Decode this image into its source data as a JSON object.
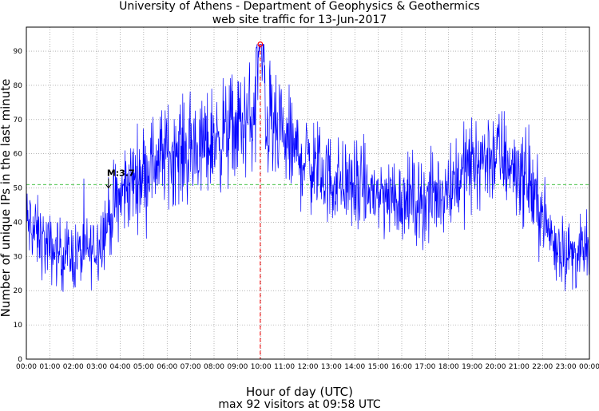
{
  "chart_data": {
    "type": "line",
    "title": "University of Athens - Department of Geophysics & Geothermics",
    "subtitle": "web site traffic for 13-Jun-2017",
    "xlabel": "Hour of day (UTC)",
    "ylabel": "Number of unique IPs in the last minute",
    "caption": "max 92 visitors at 09:58 UTC",
    "xlim": [
      0,
      24
    ],
    "ylim": [
      0,
      97
    ],
    "grid": true,
    "x_tick_labels": [
      "00:00",
      "01:00",
      "02:00",
      "03:00",
      "04:00",
      "05:00",
      "06:00",
      "07:00",
      "08:00",
      "09:00",
      "10:00",
      "11:00",
      "12:00",
      "13:00",
      "14:00",
      "15:00",
      "16:00",
      "17:00",
      "18:00",
      "19:00",
      "20:00",
      "21:00",
      "22:00",
      "23:00",
      "00:00"
    ],
    "y_ticks": [
      0,
      10,
      20,
      30,
      40,
      50,
      60,
      70,
      80,
      90
    ],
    "series": [
      {
        "color": "#0000ff",
        "x": [
          0,
          0.5,
          1,
          1.5,
          2,
          2.5,
          3,
          3.5,
          4,
          4.5,
          5,
          5.5,
          6,
          6.5,
          7,
          7.5,
          8,
          8.5,
          9,
          9.5,
          9.97,
          10.5,
          11,
          11.5,
          12,
          12.5,
          13,
          13.5,
          14,
          14.5,
          15,
          15.5,
          16,
          16.5,
          17,
          17.5,
          18,
          18.5,
          19,
          19.5,
          20,
          20.5,
          21,
          21.5,
          22,
          22.5,
          23,
          23.5,
          24
        ],
        "values": [
          40,
          36,
          32,
          31,
          30,
          31,
          33,
          41,
          47,
          52,
          55,
          58,
          60,
          61,
          60,
          62,
          64,
          66,
          68,
          70,
          92,
          66,
          64,
          60,
          58,
          55,
          52,
          52,
          50,
          49,
          48,
          48,
          47,
          47,
          46,
          48,
          51,
          54,
          57,
          59,
          60,
          58,
          55,
          50,
          42,
          34,
          31,
          30,
          33
        ]
      }
    ],
    "reference_line": {
      "value": 51,
      "color": "#00aa00"
    },
    "max_marker": {
      "x": 9.97,
      "y": 92,
      "color": "#ff0000"
    },
    "annotation": {
      "label": "M:3.7",
      "x": 3.5,
      "y": 50
    }
  }
}
